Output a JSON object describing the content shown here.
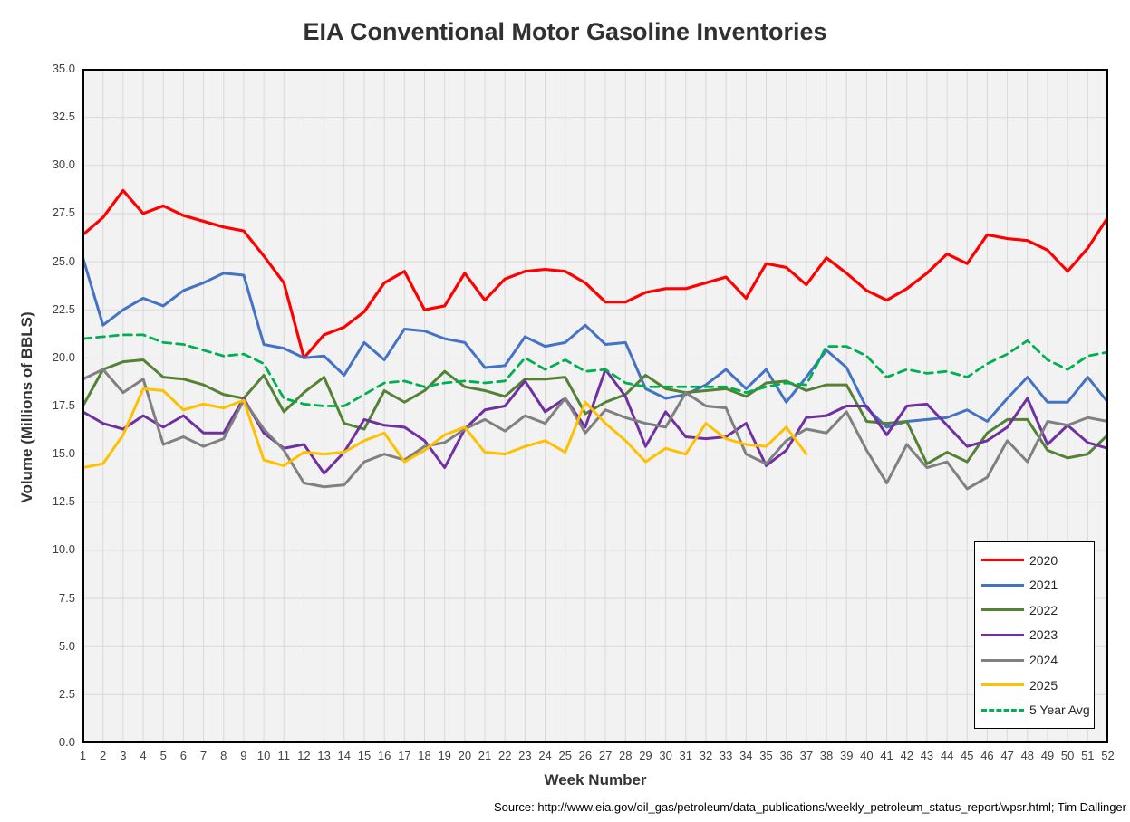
{
  "title": "EIA Conventional Motor Gasoline Inventories",
  "source_note": "Source: http://www.eia.gov/oil_gas/petroleum/data_publications/weekly_petroleum_status_report/wpsr.html; Tim Dallinger",
  "colors": {
    "plot_background": "#F2F2F2",
    "gridline": "#D9D9D9",
    "plot_border": "#000000",
    "title_text": "#303030",
    "tick_text": "#404040"
  },
  "chart_data": {
    "type": "line",
    "title": "EIA Conventional Motor Gasoline Inventories",
    "xlabel": "Week Number",
    "ylabel": "Volume (Millions of BBLS)",
    "xlim": [
      1,
      52
    ],
    "ylim": [
      0,
      35
    ],
    "ytick_step": 2.5,
    "yticks": [
      0.0,
      2.5,
      5.0,
      7.5,
      10.0,
      12.5,
      15.0,
      17.5,
      20.0,
      22.5,
      25.0,
      27.5,
      30.0,
      32.5,
      35.0
    ],
    "grid": true,
    "legend_position": "inside-lower-right",
    "x": [
      1,
      2,
      3,
      4,
      5,
      6,
      7,
      8,
      9,
      10,
      11,
      12,
      13,
      14,
      15,
      16,
      17,
      18,
      19,
      20,
      21,
      22,
      23,
      24,
      25,
      26,
      27,
      28,
      29,
      30,
      31,
      32,
      33,
      34,
      35,
      36,
      37,
      38,
      39,
      40,
      41,
      42,
      43,
      44,
      45,
      46,
      47,
      48,
      49,
      50,
      51,
      52
    ],
    "series": [
      {
        "name": "2020",
        "color": "#FF0000",
        "style": "solid",
        "width": 3.2,
        "values": [
          26.4,
          27.3,
          28.7,
          27.5,
          27.9,
          27.4,
          27.1,
          26.8,
          26.6,
          25.3,
          23.9,
          20.0,
          21.2,
          21.6,
          22.4,
          23.9,
          24.5,
          22.5,
          22.7,
          24.4,
          23.0,
          24.1,
          24.5,
          24.6,
          24.5,
          23.9,
          22.9,
          22.9,
          23.4,
          23.6,
          23.6,
          23.9,
          24.2,
          23.1,
          24.9,
          24.7,
          23.8,
          25.2,
          24.4,
          23.5,
          23.0,
          23.6,
          24.4,
          25.4,
          24.9,
          26.4,
          26.2,
          26.1,
          25.6,
          24.5,
          25.7,
          27.3
        ]
      },
      {
        "name": "2021",
        "color": "#4472C4",
        "style": "solid",
        "width": 3,
        "values": [
          25.2,
          21.7,
          22.5,
          23.1,
          22.7,
          23.5,
          23.9,
          24.4,
          24.3,
          20.7,
          20.5,
          20.0,
          20.1,
          19.1,
          20.8,
          19.9,
          21.5,
          21.4,
          21.0,
          20.8,
          19.5,
          19.6,
          21.1,
          20.6,
          20.8,
          21.7,
          20.7,
          20.8,
          18.4,
          17.9,
          18.1,
          18.6,
          19.4,
          18.4,
          19.4,
          17.7,
          19.0,
          20.4,
          19.5,
          17.4,
          16.4,
          16.7,
          16.8,
          16.9,
          17.3,
          16.7,
          17.9,
          19.0,
          17.7,
          17.7,
          19.0,
          17.7
        ]
      },
      {
        "name": "2022",
        "color": "#548235",
        "style": "solid",
        "width": 3,
        "values": [
          17.5,
          19.4,
          19.8,
          19.9,
          19.0,
          18.9,
          18.6,
          18.1,
          17.9,
          19.1,
          17.2,
          18.2,
          19.0,
          16.6,
          16.3,
          18.3,
          17.7,
          18.3,
          19.3,
          18.5,
          18.3,
          18.0,
          18.9,
          18.9,
          19.0,
          17.1,
          17.7,
          18.1,
          19.1,
          18.4,
          18.2,
          18.3,
          18.4,
          18.0,
          18.7,
          18.8,
          18.3,
          18.6,
          18.6,
          16.7,
          16.6,
          16.7,
          14.5,
          15.1,
          14.6,
          16.1,
          16.8,
          16.8,
          15.2,
          14.8,
          15.0,
          16.0
        ]
      },
      {
        "name": "2023",
        "color": "#7030A0",
        "style": "solid",
        "width": 3,
        "values": [
          17.2,
          16.6,
          16.3,
          17.0,
          16.4,
          17.0,
          16.1,
          16.1,
          17.9,
          16.1,
          15.3,
          15.5,
          14.0,
          15.1,
          16.8,
          16.5,
          16.4,
          15.7,
          14.3,
          16.3,
          17.3,
          17.5,
          18.8,
          17.2,
          17.9,
          16.4,
          19.4,
          18.0,
          15.4,
          17.2,
          15.9,
          15.8,
          15.9,
          16.6,
          14.4,
          15.2,
          16.9,
          17.0,
          17.5,
          17.5,
          16.0,
          17.5,
          17.6,
          16.5,
          15.4,
          15.7,
          16.4,
          17.9,
          15.5,
          16.5,
          15.6,
          15.3
        ]
      },
      {
        "name": "2024",
        "color": "#808080",
        "style": "solid",
        "width": 3,
        "values": [
          18.9,
          19.4,
          18.2,
          18.9,
          15.5,
          15.9,
          15.4,
          15.8,
          17.8,
          16.3,
          15.2,
          13.5,
          13.3,
          13.4,
          14.6,
          15.0,
          14.7,
          15.4,
          15.6,
          16.3,
          16.8,
          16.2,
          17.0,
          16.6,
          17.9,
          16.1,
          17.3,
          16.9,
          16.6,
          16.4,
          18.2,
          17.5,
          17.4,
          15.0,
          14.5,
          15.7,
          16.3,
          16.1,
          17.2,
          15.2,
          13.5,
          15.5,
          14.3,
          14.6,
          13.2,
          13.8,
          15.7,
          14.6,
          16.7,
          16.5,
          16.9,
          16.7
        ]
      },
      {
        "name": "2025",
        "color": "#FFC000",
        "style": "solid",
        "width": 3,
        "values": [
          14.3,
          14.5,
          16.0,
          18.4,
          18.3,
          17.3,
          17.6,
          17.4,
          17.8,
          14.7,
          14.4,
          15.1,
          15.0,
          15.1,
          15.7,
          16.1,
          14.6,
          15.2,
          16.0,
          16.4,
          15.1,
          15.0,
          15.4,
          15.7,
          15.1,
          17.7,
          16.6,
          15.7,
          14.6,
          15.3,
          15.0,
          16.6,
          15.8,
          15.5,
          15.4,
          16.4,
          15.0
        ]
      },
      {
        "name": "5 Year Avg",
        "color": "#00B050",
        "style": "dashed",
        "width": 2.8,
        "values": [
          21.0,
          21.1,
          21.2,
          21.2,
          20.8,
          20.7,
          20.4,
          20.1,
          20.2,
          19.7,
          17.9,
          17.6,
          17.5,
          17.5,
          18.1,
          18.7,
          18.8,
          18.5,
          18.7,
          18.8,
          18.7,
          18.8,
          20.0,
          19.4,
          19.9,
          19.3,
          19.4,
          18.7,
          18.5,
          18.5,
          18.5,
          18.5,
          18.5,
          18.2,
          18.5,
          18.7,
          18.6,
          20.6,
          20.6,
          20.1,
          19.0,
          19.4,
          19.2,
          19.3,
          19.0,
          19.7,
          20.2,
          20.9,
          19.9,
          19.4,
          20.1,
          20.3
        ]
      }
    ]
  }
}
